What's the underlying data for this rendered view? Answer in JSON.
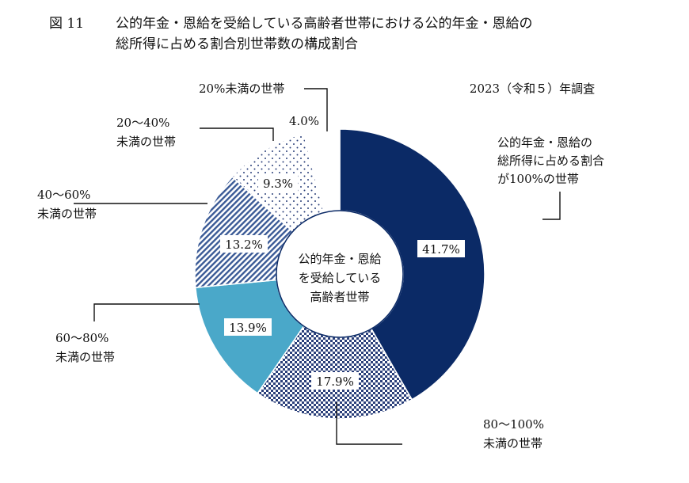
{
  "figure": {
    "label": "図 11",
    "title_line1": "公的年金・恩給を受給している高齢者世帯における公的年金・恩給の",
    "title_line2": "総所得に占める割合別世帯数の構成割合",
    "survey": "2023（令和５）年調査"
  },
  "chart_data": {
    "type": "pie",
    "title": "公的年金・恩給を受給している高齢者世帯における公的年金・恩給の総所得に占める割合別世帯数の構成割合",
    "center_label": [
      "公的年金・恩給",
      "を受給している",
      "高齢者世帯"
    ],
    "slices": [
      {
        "label": [
          "公的年金・恩給の",
          "総所得に占める割合",
          "が100%の世帯"
        ],
        "value": 41.7,
        "value_label": "41.7%",
        "fill": "#0b2a66",
        "pattern": "solid"
      },
      {
        "label": [
          "80～100%",
          "未満の世帯"
        ],
        "value": 17.9,
        "value_label": "17.9%",
        "fill": "#2a3f7a",
        "pattern": "checker"
      },
      {
        "label": [
          "60～80%",
          "未満の世帯"
        ],
        "value": 13.9,
        "value_label": "13.9%",
        "fill": "#4aa8c9",
        "pattern": "solid"
      },
      {
        "label": [
          "40～60%",
          "未満の世帯"
        ],
        "value": 13.2,
        "value_label": "13.2%",
        "fill": "#3a5a96",
        "pattern": "diagonal"
      },
      {
        "label": [
          "20～40%",
          "未満の世帯"
        ],
        "value": 9.3,
        "value_label": "9.3%",
        "fill": "#3a5a96",
        "pattern": "dots"
      },
      {
        "label": [
          "20%未満の世帯"
        ],
        "value": 4.0,
        "value_label": "4.0%",
        "fill": "#ffffff",
        "pattern": "none"
      }
    ]
  }
}
